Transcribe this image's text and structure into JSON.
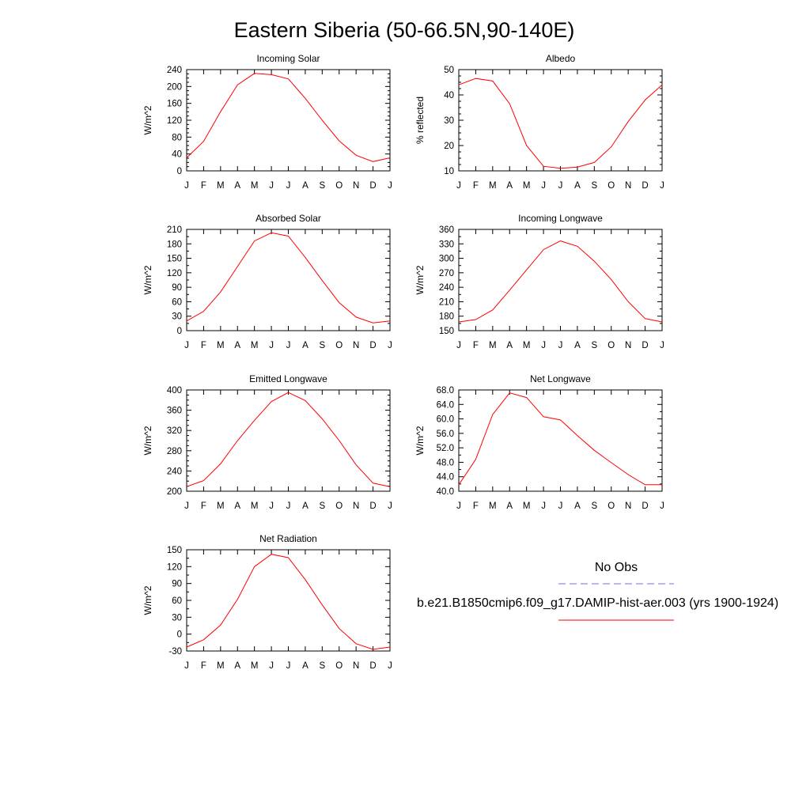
{
  "title": "Eastern Siberia (50-66.5N,90-140E)",
  "months": [
    "J",
    "F",
    "M",
    "A",
    "M",
    "J",
    "J",
    "A",
    "S",
    "O",
    "N",
    "D",
    "J"
  ],
  "legend": {
    "obs_label": "No Obs",
    "obs_color": "#7070e0",
    "model_label": "b.e21.B1850cmip6.f09_g17.DAMIP-hist-aer.003 (yrs 1900-1924)",
    "model_color": "#ff0000"
  },
  "chart_data": [
    {
      "type": "line",
      "title": "Incoming Solar",
      "ylabel": "W/m^2",
      "ylim": [
        0,
        240
      ],
      "yticks": [
        "0",
        "40",
        "80",
        "120",
        "160",
        "200",
        "240"
      ],
      "yminor": 4,
      "x": [
        "J",
        "F",
        "M",
        "A",
        "M",
        "J",
        "J",
        "A",
        "S",
        "O",
        "N",
        "D",
        "J"
      ],
      "series": [
        {
          "values": [
            31,
            70,
            140,
            204,
            231,
            228,
            218,
            172,
            120,
            71,
            37,
            22,
            31
          ]
        }
      ]
    },
    {
      "type": "line",
      "title": "Albedo",
      "ylabel": "% reflected",
      "ylim": [
        10,
        50
      ],
      "yticks": [
        "10",
        "20",
        "30",
        "40",
        "50"
      ],
      "yminor": 4,
      "x": [
        "J",
        "F",
        "M",
        "A",
        "M",
        "J",
        "J",
        "A",
        "S",
        "O",
        "N",
        "D",
        "J"
      ],
      "series": [
        {
          "values": [
            44,
            46.5,
            45.5,
            36.5,
            20,
            11.8,
            11,
            11.5,
            13.3,
            19.5,
            29.5,
            38,
            44
          ]
        }
      ]
    },
    {
      "type": "line",
      "title": "Absorbed Solar",
      "ylabel": "W/m^2",
      "ylim": [
        0,
        210
      ],
      "yticks": [
        "0",
        "30",
        "60",
        "90",
        "120",
        "150",
        "180",
        "210"
      ],
      "yminor": 2,
      "x": [
        "J",
        "F",
        "M",
        "A",
        "M",
        "J",
        "J",
        "A",
        "S",
        "O",
        "N",
        "D",
        "J"
      ],
      "series": [
        {
          "values": [
            20,
            40,
            80,
            133,
            186,
            203,
            196,
            152,
            104,
            58,
            28,
            16,
            20
          ]
        }
      ]
    },
    {
      "type": "line",
      "title": "Incoming Longwave",
      "ylabel": "W/m^2",
      "ylim": [
        150,
        360
      ],
      "yticks": [
        "150",
        "180",
        "210",
        "240",
        "270",
        "300",
        "330",
        "360"
      ],
      "yminor": 2,
      "x": [
        "J",
        "F",
        "M",
        "A",
        "M",
        "J",
        "J",
        "A",
        "S",
        "O",
        "N",
        "D",
        "J"
      ],
      "series": [
        {
          "values": [
            168,
            173,
            193,
            234,
            276,
            318,
            336,
            325,
            294,
            256,
            210,
            175,
            168
          ]
        }
      ]
    },
    {
      "type": "line",
      "title": "Emitted Longwave",
      "ylabel": "W/m^2",
      "ylim": [
        200,
        400
      ],
      "yticks": [
        "200",
        "240",
        "280",
        "320",
        "360",
        "400"
      ],
      "yminor": 4,
      "x": [
        "J",
        "F",
        "M",
        "A",
        "M",
        "J",
        "J",
        "A",
        "S",
        "O",
        "N",
        "D",
        "J"
      ],
      "series": [
        {
          "values": [
            209,
            221,
            254,
            300,
            340,
            377,
            395,
            379,
            343,
            300,
            252,
            216,
            209
          ]
        }
      ]
    },
    {
      "type": "line",
      "title": "Net Longwave",
      "ylabel": "W/m^2",
      "ylim": [
        40,
        68
      ],
      "yticks": [
        "40.0",
        "44.0",
        "48.0",
        "52.0",
        "56.0",
        "60.0",
        "64.0",
        "68.0"
      ],
      "yminor": 2,
      "x": [
        "J",
        "F",
        "M",
        "A",
        "M",
        "J",
        "J",
        "A",
        "S",
        "O",
        "N",
        "D",
        "J"
      ],
      "series": [
        {
          "values": [
            41.8,
            48.8,
            61.2,
            67.2,
            65.9,
            60.6,
            59.7,
            55.4,
            51.3,
            47.9,
            44.6,
            41.8,
            41.8
          ]
        }
      ]
    },
    {
      "type": "line",
      "title": "Net Radiation",
      "ylabel": "W/m^2",
      "ylim": [
        -30,
        150
      ],
      "yticks": [
        "-30",
        "0",
        "30",
        "60",
        "90",
        "120",
        "150"
      ],
      "yminor": 2,
      "x": [
        "J",
        "F",
        "M",
        "A",
        "M",
        "J",
        "J",
        "A",
        "S",
        "O",
        "N",
        "D",
        "J"
      ],
      "series": [
        {
          "values": [
            -23,
            -10,
            16,
            62,
            120,
            142,
            136,
            97,
            52,
            10,
            -17,
            -27,
            -23
          ]
        }
      ]
    }
  ]
}
